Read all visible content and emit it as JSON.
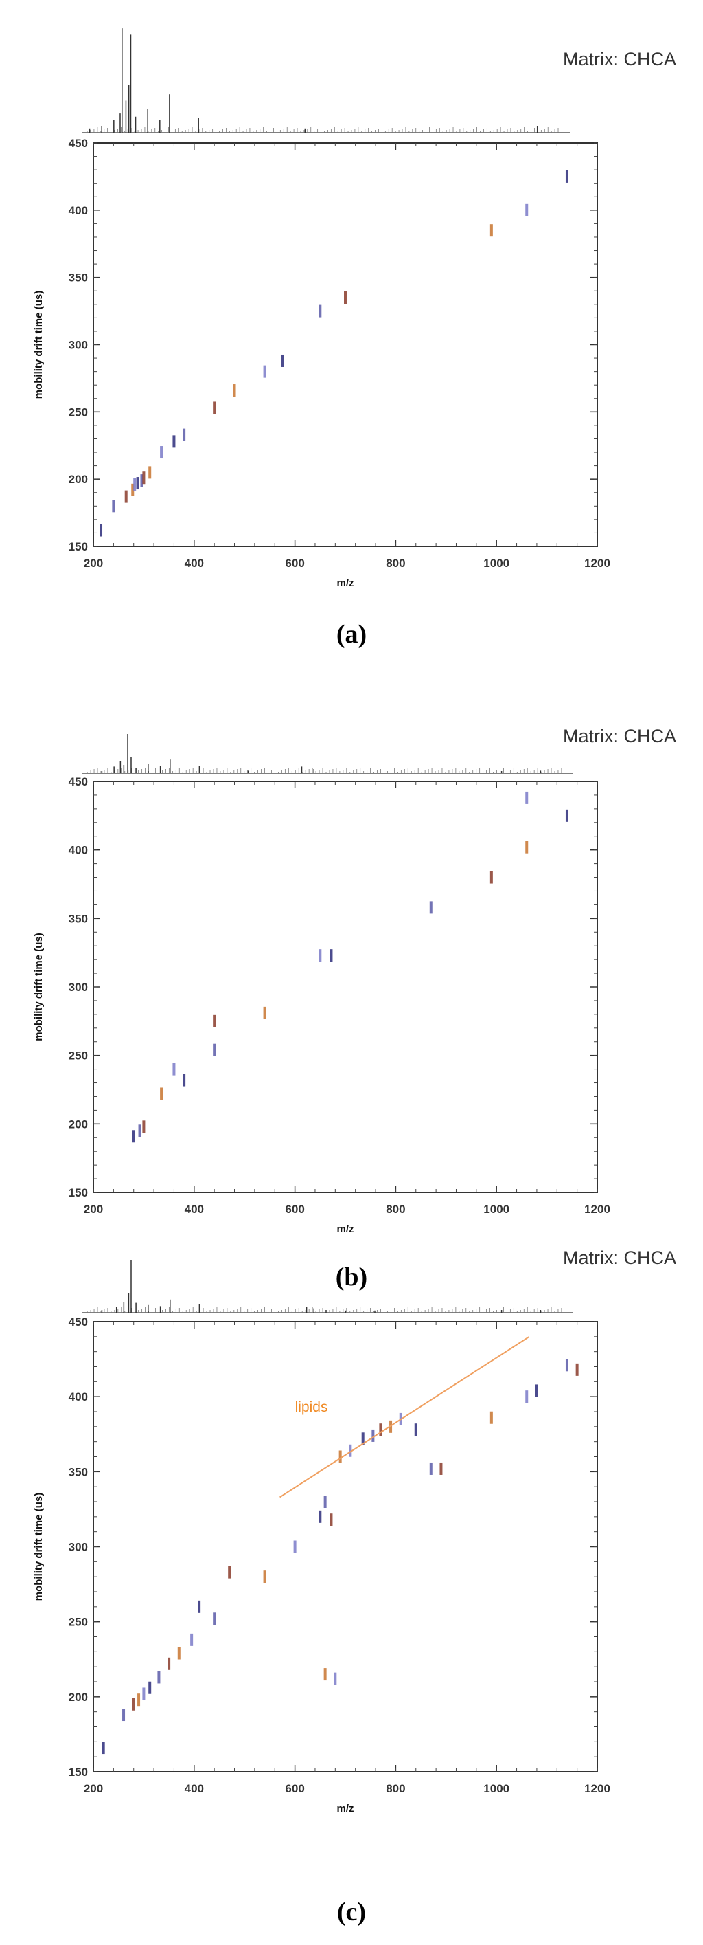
{
  "chart_data": [
    {
      "type": "scatter",
      "panel": "(a)",
      "annotation": "Matrix: CHCA",
      "xlabel": "m/z",
      "ylabel": "mobility drift time (us)",
      "xlim": [
        200,
        1200
      ],
      "ylim": [
        150,
        450
      ],
      "xticks": [
        "200",
        "400",
        "600",
        "800",
        "1000",
        "1200"
      ],
      "yticks": [
        "150",
        "200",
        "250",
        "300",
        "350",
        "400",
        "450"
      ],
      "spectrum": {
        "x": [
          215,
          240,
          265,
          278,
          282,
          290,
          296,
          300,
          310,
          335,
          360,
          380,
          440,
          660,
          1140
        ],
        "y": [
          0.04,
          0.06,
          0.12,
          0.18,
          0.98,
          0.3,
          0.45,
          0.92,
          0.15,
          0.22,
          0.12,
          0.36,
          0.14,
          0.04,
          0.06
        ]
      },
      "points": [
        [
          215,
          162
        ],
        [
          240,
          180
        ],
        [
          265,
          187
        ],
        [
          278,
          192
        ],
        [
          282,
          196
        ],
        [
          288,
          197
        ],
        [
          296,
          199
        ],
        [
          300,
          201
        ],
        [
          312,
          205
        ],
        [
          335,
          220
        ],
        [
          360,
          228
        ],
        [
          380,
          233
        ],
        [
          440,
          253
        ],
        [
          480,
          266
        ],
        [
          540,
          280
        ],
        [
          575,
          288
        ],
        [
          650,
          325
        ],
        [
          700,
          335
        ],
        [
          990,
          385
        ],
        [
          1060,
          400
        ],
        [
          1140,
          425
        ]
      ],
      "grid": false,
      "legend": "none"
    },
    {
      "type": "scatter",
      "panel": "(b)",
      "annotation": "Matrix: CHCA",
      "xlabel": "m/z",
      "ylabel": "mobility drift time (us)",
      "xlim": [
        200,
        1200
      ],
      "ylim": [
        150,
        450
      ],
      "xticks": [
        "200",
        "400",
        "600",
        "800",
        "1000",
        "1200"
      ],
      "yticks": [
        "150",
        "200",
        "250",
        "300",
        "350",
        "400",
        "450"
      ],
      "spectrum": {
        "x": [
          240,
          265,
          278,
          285,
          293,
          300,
          310,
          335,
          360,
          380,
          440,
          540,
          650,
          675,
          1060,
          1140
        ],
        "y": [
          0.05,
          0.16,
          0.3,
          0.2,
          0.95,
          0.4,
          0.12,
          0.22,
          0.18,
          0.33,
          0.17,
          0.06,
          0.16,
          0.1,
          0.05,
          0.06
        ]
      },
      "points": [
        [
          280,
          191
        ],
        [
          292,
          195
        ],
        [
          300,
          198
        ],
        [
          335,
          222
        ],
        [
          360,
          240
        ],
        [
          380,
          232
        ],
        [
          440,
          254
        ],
        [
          440,
          275
        ],
        [
          540,
          281
        ],
        [
          650,
          323
        ],
        [
          672,
          323
        ],
        [
          870,
          358
        ],
        [
          990,
          380
        ],
        [
          1060,
          402
        ],
        [
          1060,
          438
        ],
        [
          1140,
          425
        ]
      ],
      "grid": false,
      "legend": "none"
    },
    {
      "type": "scatter",
      "panel": "(c)",
      "annotation": "Matrix: CHCA",
      "xlabel": "m/z",
      "ylabel": "mobility drift time (us)",
      "xlim": [
        200,
        1200
      ],
      "ylim": [
        150,
        450
      ],
      "xticks": [
        "200",
        "400",
        "600",
        "800",
        "1000",
        "1200"
      ],
      "yticks": [
        "150",
        "200",
        "250",
        "300",
        "350",
        "400",
        "450"
      ],
      "lipids_label": "lipids",
      "lipids_line": {
        "x": [
          570,
          1065
        ],
        "y": [
          333,
          440
        ]
      },
      "spectrum": {
        "x": [
          240,
          270,
          285,
          295,
          300,
          310,
          335,
          360,
          380,
          440,
          660,
          675,
          700,
          740,
          800,
          1060,
          1140
        ],
        "y": [
          0.05,
          0.1,
          0.2,
          0.35,
          0.95,
          0.18,
          0.14,
          0.12,
          0.24,
          0.15,
          0.1,
          0.08,
          0.05,
          0.04,
          0.04,
          0.05,
          0.05
        ]
      },
      "points": [
        [
          220,
          166
        ],
        [
          260,
          188
        ],
        [
          280,
          195
        ],
        [
          290,
          198
        ],
        [
          300,
          202
        ],
        [
          312,
          206
        ],
        [
          330,
          213
        ],
        [
          350,
          222
        ],
        [
          370,
          229
        ],
        [
          395,
          238
        ],
        [
          410,
          260
        ],
        [
          440,
          252
        ],
        [
          470,
          283
        ],
        [
          540,
          280
        ],
        [
          600,
          300
        ],
        [
          650,
          320
        ],
        [
          660,
          330
        ],
        [
          672,
          318
        ],
        [
          690,
          360
        ],
        [
          710,
          364
        ],
        [
          735,
          372
        ],
        [
          755,
          374
        ],
        [
          770,
          378
        ],
        [
          790,
          380
        ],
        [
          810,
          385
        ],
        [
          840,
          378
        ],
        [
          870,
          352
        ],
        [
          890,
          352
        ],
        [
          990,
          386
        ],
        [
          1060,
          400
        ],
        [
          1080,
          404
        ],
        [
          1140,
          421
        ],
        [
          1160,
          418
        ],
        [
          660,
          215
        ],
        [
          680,
          212
        ]
      ],
      "grid": false,
      "legend": "none"
    }
  ]
}
